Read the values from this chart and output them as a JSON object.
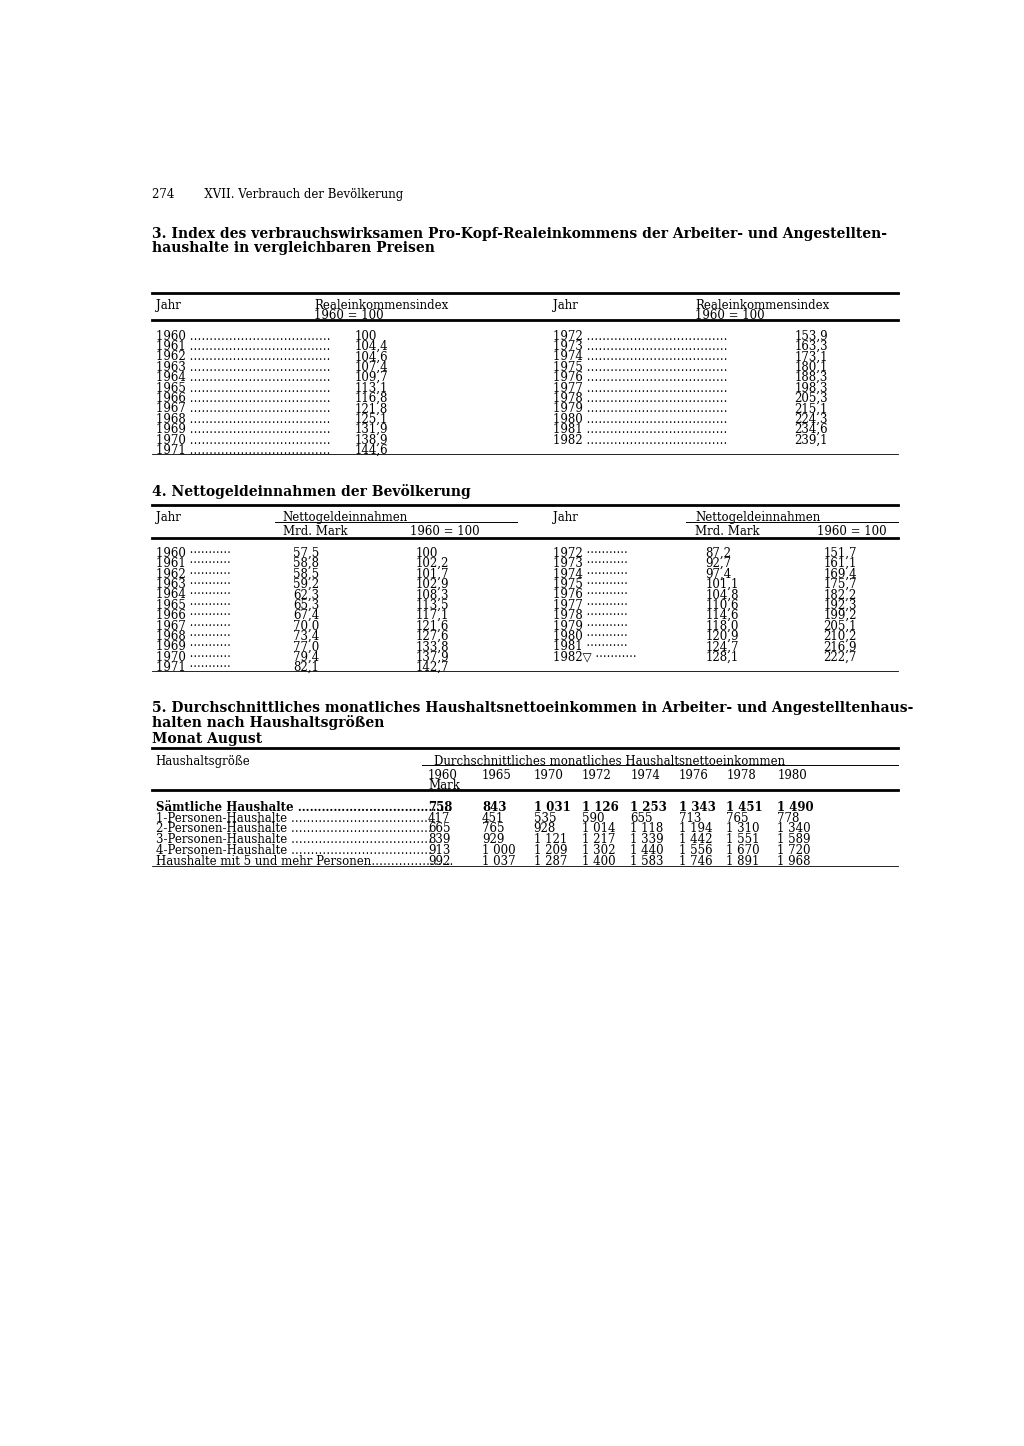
{
  "page_header": "274        XVII. Verbrauch der Bevölkerung",
  "section3_title_line1": "3. Index des verbrauchswirksamen Pro-Kopf-Realeinkommens der Arbeiter- und Angestellten-",
  "section3_title_line2": "haushalte in vergleichbaren Preisen",
  "section3_col1_header1": "Jahr",
  "section3_col2_header1": "Realeinkommensindex",
  "section3_col2_header2": "1960 = 100",
  "section3_col3_header1": "Jahr",
  "section3_col4_header1": "Realeinkommensindex",
  "section3_col4_header2": "1960 = 100",
  "section3_left": [
    [
      "1960",
      "100"
    ],
    [
      "1961",
      "104,4"
    ],
    [
      "1962",
      "104,6"
    ],
    [
      "1963",
      "107,4"
    ],
    [
      "1964",
      "109,7"
    ],
    [
      "1965",
      "113,1"
    ],
    [
      "1966",
      "116,8"
    ],
    [
      "1967",
      "121,8"
    ],
    [
      "1968",
      "125,1"
    ],
    [
      "1969",
      "131,9"
    ],
    [
      "1970",
      "138,9"
    ],
    [
      "1971",
      "144,6"
    ]
  ],
  "section3_right": [
    [
      "1972",
      "153,9"
    ],
    [
      "1973",
      "163,3"
    ],
    [
      "1974",
      "173,1"
    ],
    [
      "1975",
      "180,1"
    ],
    [
      "1976",
      "188,3"
    ],
    [
      "1977",
      "198,3"
    ],
    [
      "1978",
      "205,3"
    ],
    [
      "1979",
      "215,1"
    ],
    [
      "1980",
      "224,3"
    ],
    [
      "1981",
      "234,6"
    ],
    [
      "1982",
      "239,1"
    ]
  ],
  "section4_title": "4. Nettogeldeinnahmen der Bevölkerung",
  "section4_col1_header": "Jahr",
  "section4_col2_header": "Nettogeldeinnahmen",
  "section4_col2a_header": "Mrd. Mark",
  "section4_col2b_header": "1960 = 100",
  "section4_col3_header": "Jahr",
  "section4_col4_header": "Nettogeldeinnahmen",
  "section4_col4a_header": "Mrd. Mark",
  "section4_col4b_header": "1960 = 100",
  "section4_left": [
    [
      "1960",
      "57,5",
      "100"
    ],
    [
      "1961",
      "58,8",
      "102,2"
    ],
    [
      "1962",
      "58,5",
      "101,7"
    ],
    [
      "1963",
      "59,2",
      "102,9"
    ],
    [
      "1964",
      "62,3",
      "108,3"
    ],
    [
      "1965",
      "65,3",
      "113,5"
    ],
    [
      "1966",
      "67,4",
      "117,1"
    ],
    [
      "1967",
      "70,0",
      "121,6"
    ],
    [
      "1968",
      "73,4",
      "127,6"
    ],
    [
      "1969",
      "77,0",
      "133,8"
    ],
    [
      "1970",
      "79,4",
      "137,9"
    ],
    [
      "1971",
      "82,1",
      "142,7"
    ]
  ],
  "section4_right": [
    [
      "1972",
      "87,2",
      "151,7"
    ],
    [
      "1973",
      "92,7",
      "161,1"
    ],
    [
      "1974",
      "97,4",
      "169,4"
    ],
    [
      "1975",
      "101,1",
      "175,7"
    ],
    [
      "1976",
      "104,8",
      "182,2"
    ],
    [
      "1977",
      "110,6",
      "192,3"
    ],
    [
      "1978",
      "114,6",
      "199,2"
    ],
    [
      "1979",
      "118,0",
      "205,1"
    ],
    [
      "1980",
      "120,9",
      "210,2"
    ],
    [
      "1981",
      "124,7",
      "216,9"
    ],
    [
      "1982▽",
      "128,1",
      "222,7"
    ]
  ],
  "section5_title_line1": "5. Durchschnittliches monatliches Haushaltsnettoeinkommen in Arbeiter- und Angestelltenhaus-",
  "section5_title_line2": "halten nach Haushaltsgrößen",
  "section5_subtitle": "Monat August",
  "section5_col_header1": "Haushaltsgröße",
  "section5_col_header2": "Durchschnittliches monatliches Haushaltsnettoeinkommen",
  "section5_years": [
    "1960",
    "1965",
    "1970",
    "1972",
    "1974",
    "1976",
    "1978",
    "1980"
  ],
  "section5_unit": "Mark",
  "section5_rows": [
    [
      "Sämtliche Haushalte",
      true,
      "758",
      "843",
      "1 031",
      "1 126",
      "1 253",
      "1 343",
      "1 451",
      "1 490"
    ],
    [
      "1-Personen-Haushalte",
      false,
      "417",
      "451",
      "535",
      "590",
      "655",
      "713",
      "765",
      "778"
    ],
    [
      "2-Personen-Haushalte",
      false,
      "665",
      "765",
      "928",
      "1 014",
      "1 118",
      "1 194",
      "1 310",
      "1 340"
    ],
    [
      "3-Personen-Haushalte",
      false,
      "839",
      "929",
      "1 121",
      "1 217",
      "1 339",
      "1 442",
      "1 551",
      "1 589"
    ],
    [
      "4-Personen-Haushalte",
      false,
      "913",
      "1 000",
      "1 209",
      "1 302",
      "1 440",
      "1 556",
      "1 670",
      "1 720"
    ],
    [
      "Haushalte mit 5 und mehr Personen",
      false,
      "992",
      "1 037",
      "1 287",
      "1 400",
      "1 583",
      "1 746",
      "1 891",
      "1 968"
    ]
  ]
}
